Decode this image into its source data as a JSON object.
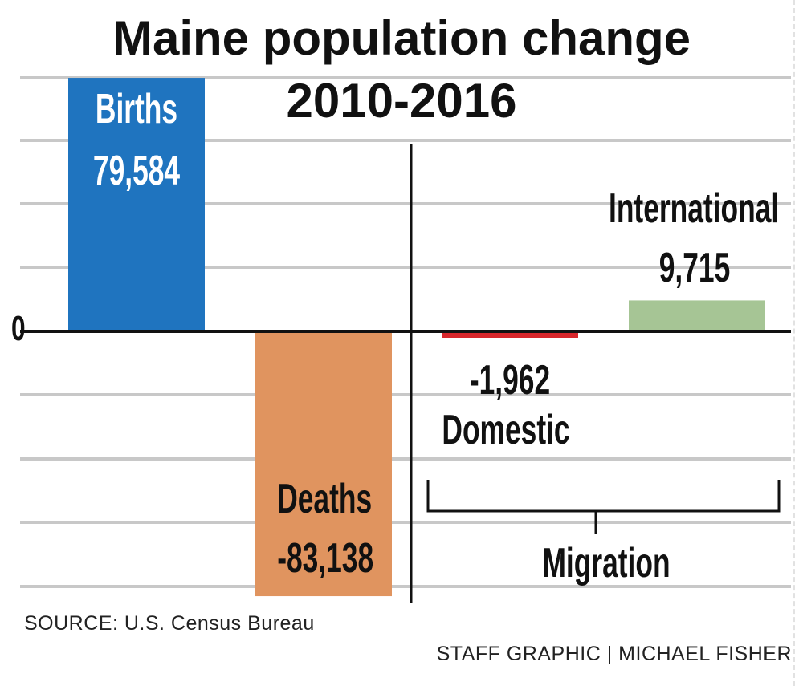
{
  "title_line1": "Maine population change",
  "title_line2": "2010-2016",
  "chart_data": {
    "type": "bar",
    "title": "Maine population change 2010-2016",
    "categories": [
      "Births",
      "Deaths",
      "Domestic",
      "International"
    ],
    "values": [
      79584,
      -83138,
      -1962,
      9715
    ],
    "value_labels": [
      "79,584",
      "-83,138",
      "-1,962",
      "9,715"
    ],
    "colors": [
      "#1f74bf",
      "#e0945f",
      "#d7262b",
      "#a6c595"
    ],
    "group_label": "Migration",
    "group_members": [
      "Domestic",
      "International"
    ],
    "y_tick_labels": [
      "0"
    ],
    "ylim": [
      -84000,
      80000
    ],
    "grid": true,
    "xlabel": "",
    "ylabel": ""
  },
  "source": "SOURCE: U.S. Census Bureau",
  "credit": "STAFF GRAPHIC | MICHAEL FISHER"
}
